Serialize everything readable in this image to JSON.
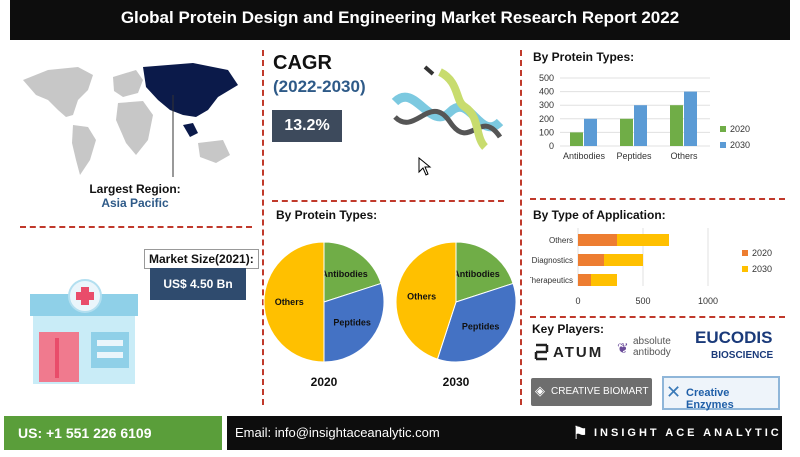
{
  "title": "Global Protein Design and Engineering Market Research Report 2022",
  "region": {
    "label": "Largest Region:",
    "value": "Asia Pacific"
  },
  "cagr": {
    "title": "CAGR",
    "years": "(2022-2030)",
    "value": "13.2%"
  },
  "market_size": {
    "label": "Market Size(2021):",
    "value": "US$ 4.50 Bn"
  },
  "colors": {
    "orange": "#ed7d31",
    "yellow": "#ffc000",
    "green": "#70ad47",
    "blue": "#4472c4",
    "bar_green": "#70ad47",
    "bar_blue": "#5b9bd5",
    "accent_red": "#c0392b"
  },
  "chart_data": [
    {
      "type": "bar",
      "title": "By Protein Types:",
      "categories": [
        "Antibodies",
        "Peptides",
        "Others"
      ],
      "series": [
        {
          "name": "2020",
          "values": [
            100,
            200,
            300
          ]
        },
        {
          "name": "2030",
          "values": [
            200,
            300,
            400
          ]
        }
      ],
      "ylim": [
        0,
        500
      ],
      "yticks": [
        "0",
        "100",
        "200",
        "300",
        "400",
        "500"
      ],
      "legend": "right"
    },
    {
      "type": "bar",
      "orientation": "horizontal",
      "title": "By Type of Application:",
      "categories": [
        "Others",
        "Diagnostics",
        "Therapeutics"
      ],
      "series": [
        {
          "name": "2020",
          "values": [
            300,
            200,
            100
          ]
        },
        {
          "name": "2030",
          "values": [
            400,
            300,
            200
          ]
        }
      ],
      "xlim": [
        0,
        1000
      ],
      "xticks": [
        "0",
        "500",
        "1000"
      ],
      "legend": "right"
    },
    {
      "type": "pie",
      "title": "By Protein Types:",
      "charts": [
        {
          "label": "2020",
          "slices": [
            {
              "name": "Antibodies",
              "value": 20
            },
            {
              "name": "Peptides",
              "value": 30
            },
            {
              "name": "Others",
              "value": 50
            }
          ]
        },
        {
          "label": "2030",
          "slices": [
            {
              "name": "Antibodies",
              "value": 20
            },
            {
              "name": "Peptides",
              "value": 35
            },
            {
              "name": "Others",
              "value": 45
            }
          ]
        }
      ]
    }
  ],
  "players": {
    "title": "Key Players:",
    "items": [
      "ATUM",
      "absolute antibody",
      "EUCODIS",
      "BIOSCIENCE",
      "CREATIVE BIOMART",
      "Creative Enzymes"
    ]
  },
  "footer": {
    "phone": "US: +1 551 226 6109",
    "email": "Email: info@insightaceanalytic.com",
    "brand": "INSIGHT ACE ANALYTIC"
  }
}
